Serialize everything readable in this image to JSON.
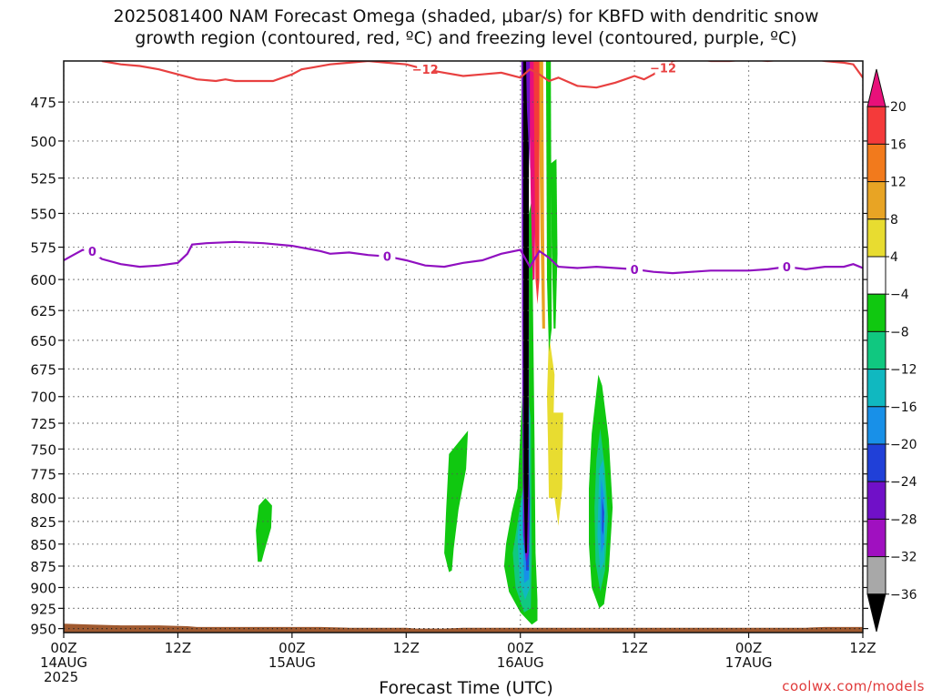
{
  "title_line1": "2025081400 NAM Forecast Omega (shaded, μbar/s) for KBFD with dendritic snow",
  "title_line2": "growth region (contoured, red, ºC) and freezing level (contoured, purple, ºC)",
  "credit": "coolwx.com/models",
  "chart_data": {
    "type": "heatmap",
    "xlabel": "Forecast Time (UTC)",
    "x_range_hours": [
      0,
      84
    ],
    "x_ticks": [
      {
        "hour": 0,
        "lines": [
          "00Z",
          "14AUG",
          "2025"
        ]
      },
      {
        "hour": 12,
        "lines": [
          "12Z"
        ]
      },
      {
        "hour": 24,
        "lines": [
          "00Z",
          "15AUG"
        ]
      },
      {
        "hour": 36,
        "lines": [
          "12Z"
        ]
      },
      {
        "hour": 48,
        "lines": [
          "00Z",
          "16AUG"
        ]
      },
      {
        "hour": 60,
        "lines": [
          "12Z"
        ]
      },
      {
        "hour": 72,
        "lines": [
          "00Z",
          "17AUG"
        ]
      },
      {
        "hour": 84,
        "lines": [
          "12Z"
        ]
      }
    ],
    "y_ticks": [
      475,
      500,
      525,
      550,
      575,
      600,
      625,
      650,
      675,
      700,
      725,
      750,
      775,
      800,
      825,
      850,
      875,
      900,
      925,
      950
    ],
    "y_range_hPa": [
      450,
      955
    ],
    "y_scale": "log-pressure",
    "grid": true,
    "colorbar": {
      "labels": [
        "20",
        "16",
        "12",
        "8",
        "4",
        "−4",
        "−8",
        "−12",
        "−16",
        "−20",
        "−24",
        "−28",
        "−32",
        "−36"
      ],
      "colors": [
        "#e8107a",
        "#f43a3a",
        "#f27a1c",
        "#e8a424",
        "#e8dc30",
        "#ffffff",
        "#10c810",
        "#10c880",
        "#10b8c0",
        "#1890e8",
        "#2040d8",
        "#7010c8",
        "#a010c0",
        "#a8a8a8",
        "#000000"
      ]
    },
    "contours": [
      {
        "label": "−12",
        "color": "#e84040",
        "points": [
          [
            4,
            450
          ],
          [
            6,
            452
          ],
          [
            8,
            453
          ],
          [
            10,
            455
          ],
          [
            12,
            458
          ],
          [
            14,
            461
          ],
          [
            16,
            462
          ],
          [
            17,
            461
          ],
          [
            18,
            462
          ],
          [
            20,
            462
          ],
          [
            22,
            462
          ],
          [
            24,
            458
          ],
          [
            25,
            455
          ],
          [
            26,
            454
          ],
          [
            28,
            452
          ],
          [
            30,
            451
          ],
          [
            32,
            450
          ],
          [
            34,
            451
          ],
          [
            36,
            452
          ],
          [
            38,
            455
          ],
          [
            40,
            457
          ],
          [
            42,
            459
          ],
          [
            44,
            458
          ],
          [
            46,
            457
          ],
          [
            48,
            460
          ],
          [
            49,
            455
          ],
          [
            50,
            458
          ],
          [
            51,
            462
          ],
          [
            52,
            460
          ],
          [
            54,
            465
          ],
          [
            56,
            466
          ],
          [
            58,
            463
          ],
          [
            59,
            461
          ],
          [
            60,
            459
          ],
          [
            61,
            461
          ],
          [
            62,
            458
          ],
          [
            63,
            454
          ],
          [
            64,
            450
          ],
          [
            66,
            448
          ],
          [
            68,
            450
          ],
          [
            70,
            450
          ],
          [
            72,
            449
          ],
          [
            74,
            450
          ],
          [
            76,
            449
          ],
          [
            78,
            448
          ],
          [
            80,
            450
          ],
          [
            82,
            451
          ],
          [
            83,
            452
          ],
          [
            84,
            460
          ],
          [
            84.3,
            453
          ]
        ]
      },
      {
        "label": "0",
        "color": "#9010c0",
        "points": [
          [
            0,
            585
          ],
          [
            1,
            581
          ],
          [
            2,
            577
          ],
          [
            3,
            578
          ],
          [
            4,
            584
          ],
          [
            6,
            588
          ],
          [
            8,
            590
          ],
          [
            10,
            589
          ],
          [
            12,
            587
          ],
          [
            13,
            580
          ],
          [
            13.5,
            573
          ],
          [
            15,
            572
          ],
          [
            18,
            571
          ],
          [
            21,
            572
          ],
          [
            24,
            574
          ],
          [
            27,
            578
          ],
          [
            28,
            580
          ],
          [
            30,
            579
          ],
          [
            32,
            581
          ],
          [
            34,
            582
          ],
          [
            36,
            585
          ],
          [
            38,
            589
          ],
          [
            40,
            590
          ],
          [
            42,
            587
          ],
          [
            44,
            585
          ],
          [
            46,
            580
          ],
          [
            48,
            577
          ],
          [
            49,
            590
          ],
          [
            50,
            578
          ],
          [
            51,
            583
          ],
          [
            52,
            590
          ],
          [
            54,
            591
          ],
          [
            56,
            590
          ],
          [
            58,
            591
          ],
          [
            60,
            592
          ],
          [
            62,
            594
          ],
          [
            64,
            595
          ],
          [
            66,
            594
          ],
          [
            68,
            593
          ],
          [
            70,
            593
          ],
          [
            72,
            593
          ],
          [
            74,
            592
          ],
          [
            76,
            590
          ],
          [
            78,
            592
          ],
          [
            80,
            590
          ],
          [
            82,
            590
          ],
          [
            83,
            588
          ],
          [
            84,
            591
          ]
        ]
      }
    ],
    "omega_regions": [
      {
        "level": -4,
        "color": "#10c810",
        "pts": [
          [
            20.5,
            808
          ],
          [
            21.2,
            800
          ],
          [
            21.9,
            808
          ],
          [
            21.8,
            832
          ],
          [
            21.1,
            858
          ],
          [
            20.8,
            870
          ],
          [
            20.4,
            870
          ],
          [
            20.2,
            835
          ]
        ]
      },
      {
        "level": -4,
        "color": "#10c810",
        "pts": [
          [
            40.5,
            755
          ],
          [
            42.5,
            732
          ],
          [
            42.3,
            770
          ],
          [
            41.5,
            812
          ],
          [
            41,
            855
          ],
          [
            40.8,
            880
          ],
          [
            40.5,
            882
          ],
          [
            40,
            860
          ],
          [
            40.2,
            812
          ]
        ]
      },
      {
        "level": -4,
        "color": "#10c810",
        "pts": [
          [
            46.5,
            850
          ],
          [
            47.1,
            815
          ],
          [
            47.7,
            790
          ],
          [
            48.2,
            700
          ],
          [
            48.6,
            560
          ],
          [
            49.2,
            540
          ],
          [
            49.5,
            750
          ],
          [
            49.6,
            860
          ],
          [
            49.8,
            915
          ],
          [
            49.8,
            940
          ],
          [
            49.2,
            945
          ],
          [
            48,
            930
          ],
          [
            46.8,
            905
          ],
          [
            46.3,
            875
          ]
        ]
      },
      {
        "level": -8,
        "color": "#10c880",
        "pts": [
          [
            47.2,
            860
          ],
          [
            47.8,
            820
          ],
          [
            48.4,
            780
          ],
          [
            48.8,
            700
          ],
          [
            49.1,
            720
          ],
          [
            49.2,
            860
          ],
          [
            49.1,
            925
          ],
          [
            48.4,
            930
          ],
          [
            47.5,
            900
          ]
        ]
      },
      {
        "level": -12,
        "color": "#10b8c0",
        "pts": [
          [
            47.7,
            840
          ],
          [
            48.3,
            790
          ],
          [
            48.8,
            720
          ],
          [
            49,
            800
          ],
          [
            49,
            900
          ],
          [
            48.5,
            915
          ],
          [
            47.9,
            890
          ]
        ]
      },
      {
        "level": -16,
        "color": "#1890e8",
        "pts": [
          [
            48.2,
            820
          ],
          [
            48.6,
            760
          ],
          [
            48.9,
            700
          ],
          [
            49,
            820
          ],
          [
            48.9,
            890
          ],
          [
            48.4,
            895
          ]
        ]
      },
      {
        "level": -20,
        "color": "#2040d8",
        "pts": [
          [
            48.5,
            800
          ],
          [
            48.8,
            740
          ],
          [
            49,
            800
          ],
          [
            48.9,
            880
          ],
          [
            48.6,
            880
          ]
        ]
      },
      {
        "level": -4,
        "color": "#10c810",
        "pts": [
          [
            51.2,
            515
          ],
          [
            51.8,
            512
          ],
          [
            51.9,
            580
          ],
          [
            51.7,
            640
          ],
          [
            51.5,
            640
          ],
          [
            51.3,
            580
          ]
        ]
      },
      {
        "level": 4,
        "color": "#e8dc30",
        "pts": [
          [
            51,
            645
          ],
          [
            51.6,
            680
          ],
          [
            51.5,
            715
          ],
          [
            52.5,
            715
          ],
          [
            52.4,
            790
          ],
          [
            52,
            830
          ],
          [
            51.6,
            800
          ],
          [
            51.2,
            800
          ],
          [
            51,
            800
          ],
          [
            50.9,
            740
          ],
          [
            50.8,
            700
          ]
        ]
      },
      {
        "level": -4,
        "color": "#10c810",
        "pts": [
          [
            55.5,
            735
          ],
          [
            56.2,
            680
          ],
          [
            56.6,
            690
          ],
          [
            57.3,
            740
          ],
          [
            57.7,
            810
          ],
          [
            57.3,
            880
          ],
          [
            56.8,
            920
          ],
          [
            56.3,
            925
          ],
          [
            55.5,
            900
          ],
          [
            55.2,
            850
          ],
          [
            55.2,
            790
          ]
        ]
      },
      {
        "level": -8,
        "color": "#10c880",
        "pts": [
          [
            56,
            760
          ],
          [
            56.4,
            730
          ],
          [
            56.9,
            770
          ],
          [
            57.2,
            820
          ],
          [
            56.9,
            880
          ],
          [
            56.4,
            905
          ],
          [
            55.9,
            870
          ],
          [
            55.8,
            810
          ]
        ]
      },
      {
        "level": -12,
        "color": "#10b8c0",
        "pts": [
          [
            56.3,
            770
          ],
          [
            56.7,
            760
          ],
          [
            57,
            810
          ],
          [
            56.8,
            870
          ],
          [
            56.4,
            880
          ],
          [
            56.1,
            840
          ]
        ]
      },
      {
        "level": -16,
        "color": "#1890e8",
        "pts": [
          [
            56.5,
            780
          ],
          [
            56.8,
            800
          ],
          [
            56.8,
            850
          ],
          [
            56.5,
            860
          ],
          [
            56.4,
            820
          ]
        ]
      },
      {
        "level": -20,
        "color": "#2040d8",
        "pts": [
          [
            56.6,
            800
          ],
          [
            56.8,
            815
          ],
          [
            56.7,
            840
          ],
          [
            56.6,
            835
          ]
        ]
      },
      {
        "level": -24,
        "color": "#7010c8",
        "pts": [
          [
            48.1,
            450
          ],
          [
            48.9,
            450
          ],
          [
            48.9,
            600
          ],
          [
            48.9,
            860
          ],
          [
            48.6,
            870
          ],
          [
            48.3,
            840
          ],
          [
            48.2,
            700
          ]
        ]
      },
      {
        "level": -36,
        "color": "#000000",
        "pts": [
          [
            48.3,
            450
          ],
          [
            48.8,
            450
          ],
          [
            48.9,
            520
          ],
          [
            48.85,
            780
          ],
          [
            48.7,
            860
          ],
          [
            48.5,
            860
          ],
          [
            48.35,
            780
          ],
          [
            48.3,
            520
          ]
        ]
      },
      {
        "level": -4,
        "color": "#10c810",
        "pts": [
          [
            50.7,
            450
          ],
          [
            51.2,
            450
          ],
          [
            51.3,
            640
          ],
          [
            51,
            660
          ],
          [
            50.8,
            600
          ]
        ]
      },
      {
        "level": 20,
        "color": "#e8107a",
        "pts": [
          [
            48.7,
            450
          ],
          [
            49.9,
            450
          ],
          [
            49.8,
            480
          ],
          [
            49.9,
            520
          ],
          [
            49.6,
            540
          ],
          [
            49.5,
            600
          ],
          [
            49.3,
            600
          ],
          [
            49.1,
            540
          ],
          [
            49,
            500
          ]
        ]
      },
      {
        "level": 8,
        "color": "#e8a424",
        "pts": [
          [
            49.9,
            450
          ],
          [
            50.4,
            450
          ],
          [
            50.5,
            560
          ],
          [
            50.6,
            640
          ],
          [
            50.3,
            640
          ],
          [
            50.1,
            560
          ]
        ]
      },
      {
        "level": 16,
        "color": "#f43a3a",
        "pts": [
          [
            49.4,
            450
          ],
          [
            50,
            450
          ],
          [
            50,
            600
          ],
          [
            49.8,
            620
          ],
          [
            49.6,
            600
          ]
        ]
      },
      {
        "level": -24,
        "color": "#7010c8",
        "pts": [
          [
            48.6,
            450
          ],
          [
            49,
            450
          ],
          [
            49,
            520
          ],
          [
            48.7,
            480
          ]
        ]
      }
    ],
    "terrain": {
      "color": "#a05a30",
      "pts": [
        [
          0,
          944
        ],
        [
          3,
          945
        ],
        [
          6,
          946
        ],
        [
          10,
          946
        ],
        [
          13,
          947
        ],
        [
          14,
          948
        ],
        [
          18,
          948
        ],
        [
          22,
          948
        ],
        [
          26,
          948
        ],
        [
          27,
          948
        ],
        [
          30,
          949
        ],
        [
          36,
          949
        ],
        [
          37,
          950
        ],
        [
          40,
          950
        ],
        [
          42,
          949
        ],
        [
          48,
          949
        ],
        [
          52,
          949
        ],
        [
          60,
          949
        ],
        [
          66,
          949
        ],
        [
          72,
          949
        ],
        [
          78,
          949
        ],
        [
          80,
          948
        ],
        [
          84,
          948
        ]
      ]
    }
  }
}
